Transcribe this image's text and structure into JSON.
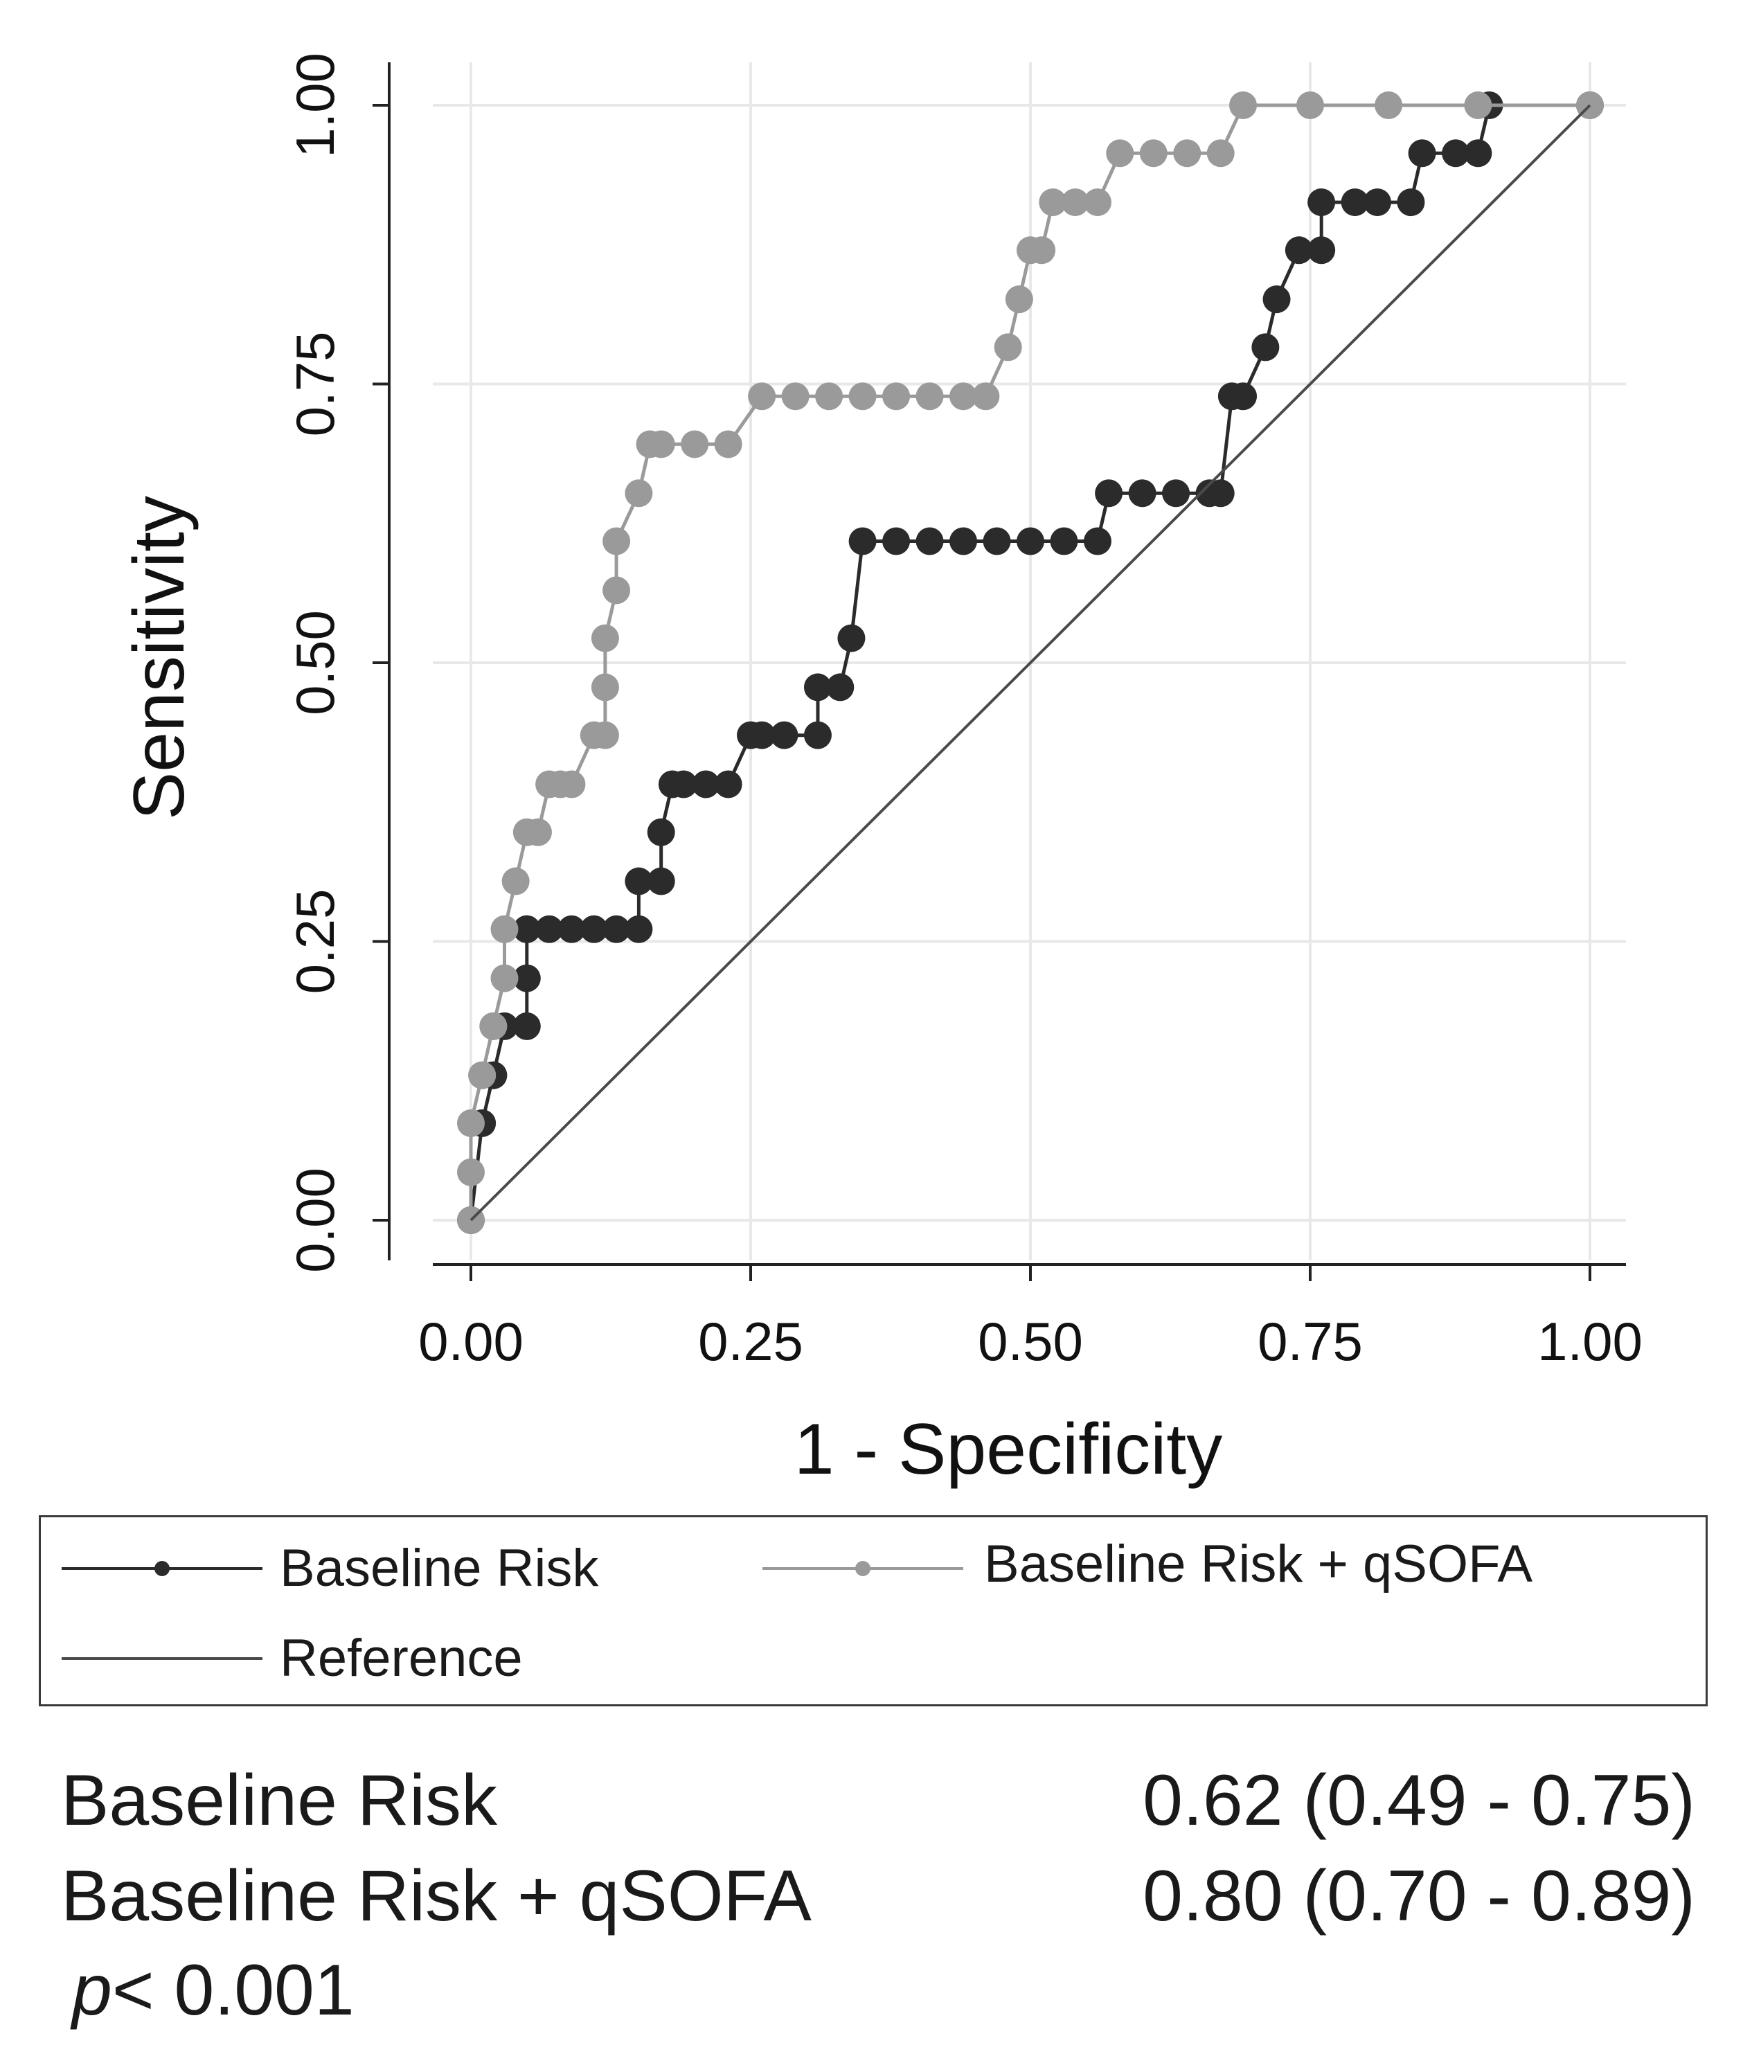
{
  "colors": {
    "baseline": "#2b2b2b",
    "qsofa": "#9a9a9a",
    "reference": "#4a4a4a",
    "grid": "#e8e8e8",
    "axis": "#222222"
  },
  "chart_data": {
    "type": "line",
    "xlabel": "1 - Specificity",
    "ylabel": "Sensitivity",
    "xlim": [
      0,
      1
    ],
    "ylim": [
      0,
      1
    ],
    "xticks": [
      0,
      0.25,
      0.5,
      0.75,
      1
    ],
    "yticks": [
      0,
      0.25,
      0.5,
      0.75,
      1
    ],
    "xtick_labels": [
      "0.00",
      "0.25",
      "0.50",
      "0.75",
      "1.00"
    ],
    "ytick_labels": [
      "0.00",
      "0.25",
      "0.50",
      "0.75",
      "1.00"
    ],
    "grid": true,
    "legend_position": "below",
    "series": [
      {
        "name": "Baseline Risk",
        "color_key": "baseline",
        "marker": "circle",
        "x": [
          0,
          0.01,
          0.02,
          0.02,
          0.03,
          0.05,
          0.05,
          0.05,
          0.05,
          0.07,
          0.09,
          0.11,
          0.13,
          0.15,
          0.15,
          0.17,
          0.17,
          0.18,
          0.19,
          0.21,
          0.23,
          0.25,
          0.26,
          0.28,
          0.31,
          0.31,
          0.33,
          0.34,
          0.35,
          0.38,
          0.41,
          0.44,
          0.47,
          0.5,
          0.53,
          0.56,
          0.57,
          0.6,
          0.63,
          0.66,
          0.67,
          0.68,
          0.69,
          0.71,
          0.72,
          0.74,
          0.76,
          0.76,
          0.79,
          0.81,
          0.84,
          0.85,
          0.88,
          0.9,
          0.91,
          1.0
        ],
        "y": [
          0,
          0.087,
          0.13,
          0.13,
          0.174,
          0.174,
          0.217,
          0.261,
          0.261,
          0.261,
          0.261,
          0.261,
          0.261,
          0.261,
          0.304,
          0.304,
          0.348,
          0.391,
          0.391,
          0.391,
          0.391,
          0.435,
          0.435,
          0.435,
          0.435,
          0.478,
          0.478,
          0.522,
          0.609,
          0.609,
          0.609,
          0.609,
          0.609,
          0.609,
          0.609,
          0.609,
          0.652,
          0.652,
          0.652,
          0.652,
          0.652,
          0.739,
          0.739,
          0.783,
          0.826,
          0.87,
          0.87,
          0.913,
          0.913,
          0.913,
          0.913,
          0.957,
          0.957,
          0.957,
          1.0,
          1.0
        ]
      },
      {
        "name": "Baseline Risk + qSOFA",
        "color_key": "qsofa",
        "marker": "circle",
        "x": [
          0,
          0,
          0,
          0.01,
          0.01,
          0.02,
          0.02,
          0.03,
          0.03,
          0.04,
          0.05,
          0.06,
          0.07,
          0.08,
          0.09,
          0.11,
          0.12,
          0.12,
          0.12,
          0.13,
          0.13,
          0.15,
          0.16,
          0.17,
          0.2,
          0.23,
          0.26,
          0.29,
          0.32,
          0.35,
          0.38,
          0.41,
          0.44,
          0.46,
          0.48,
          0.49,
          0.5,
          0.51,
          0.52,
          0.54,
          0.56,
          0.58,
          0.61,
          0.64,
          0.67,
          0.69,
          0.75,
          0.82,
          0.9,
          1.0
        ],
        "y": [
          0,
          0.043,
          0.087,
          0.13,
          0.13,
          0.174,
          0.174,
          0.217,
          0.261,
          0.304,
          0.348,
          0.348,
          0.391,
          0.391,
          0.391,
          0.435,
          0.435,
          0.478,
          0.522,
          0.565,
          0.609,
          0.652,
          0.696,
          0.696,
          0.696,
          0.696,
          0.739,
          0.739,
          0.739,
          0.739,
          0.739,
          0.739,
          0.739,
          0.739,
          0.783,
          0.826,
          0.87,
          0.87,
          0.913,
          0.913,
          0.913,
          0.957,
          0.957,
          0.957,
          0.957,
          1.0,
          1.0,
          1.0,
          1.0,
          1.0
        ]
      },
      {
        "name": "Reference",
        "color_key": "reference",
        "marker": "none",
        "x": [
          0,
          1
        ],
        "y": [
          0,
          1
        ]
      }
    ]
  },
  "legend": {
    "items": [
      {
        "label": "Baseline Risk"
      },
      {
        "label": "Baseline Risk + qSOFA"
      },
      {
        "label": "Reference"
      }
    ]
  },
  "auc_table": {
    "rows": [
      {
        "name": "Baseline Risk",
        "value": "0.62 (0.49 - 0.75)"
      },
      {
        "name": "Baseline Risk + qSOFA",
        "value": "0.80 (0.70 - 0.89)"
      }
    ],
    "p_symbol": "p",
    "p_text": "< 0.001"
  }
}
